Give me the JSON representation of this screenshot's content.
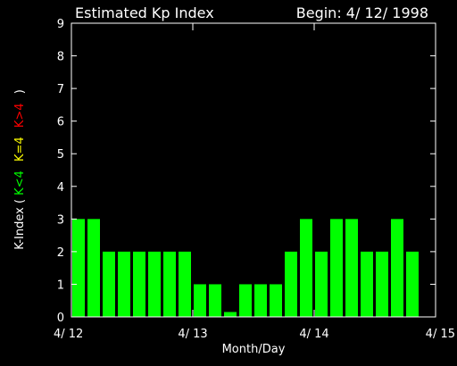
{
  "chart_data": {
    "type": "bar",
    "title": "Estimated Kp Index",
    "begin_label": "Begin: 4/ 12/ 1998",
    "xlabel": "Month/Day",
    "ylabel": {
      "prefix": "K-Index (",
      "low": "K<4",
      "mid": "K=4",
      "high": "K>4",
      "suffix": ")"
    },
    "ylim": [
      0,
      9
    ],
    "yticks": [
      "0",
      "1",
      "2",
      "3",
      "4",
      "5",
      "6",
      "7",
      "8",
      "9"
    ],
    "xticks": [
      "4/ 12",
      "4/ 13",
      "4/ 14",
      "4/ 15"
    ],
    "grid": false,
    "values": [
      3,
      3,
      2,
      2,
      2,
      2,
      2,
      2,
      1,
      1,
      0.15,
      1,
      1,
      1,
      2,
      3,
      2,
      3,
      3,
      2,
      2,
      3,
      2
    ],
    "colors": {
      "background": "#000000",
      "axis": "#ffffff",
      "low": "#00ff00",
      "mid": "#ffff00",
      "high": "#ff0000"
    }
  }
}
